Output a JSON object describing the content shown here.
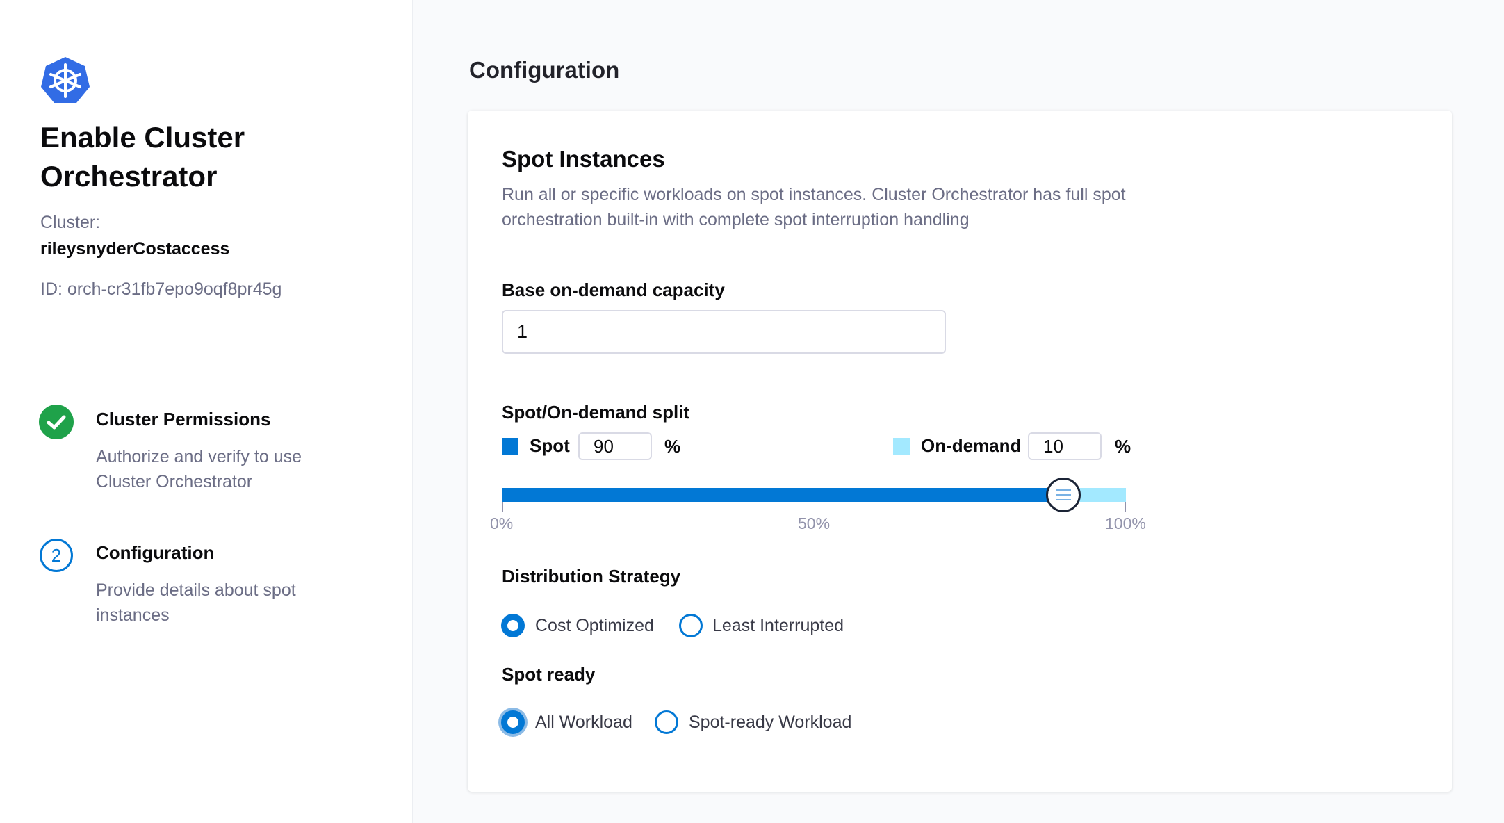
{
  "sidebar": {
    "logo_icon": "kubernetes-helm-icon",
    "title": "Enable Cluster Orchestrator",
    "cluster_label": "Cluster:",
    "cluster_name": "rileysnyderCostaccess",
    "cluster_id": "ID: orch-cr31fb7epo9oqf8pr45g",
    "steps": [
      {
        "label": "Cluster Permissions",
        "desc": "Authorize and verify to use Cluster Orchestrator",
        "status": "complete",
        "icon": "check-circle-icon"
      },
      {
        "label": "Configuration",
        "desc": "Provide details about spot instances",
        "status": "current",
        "number": "2"
      }
    ]
  },
  "main": {
    "heading": "Configuration",
    "section_title": "Spot Instances",
    "section_desc": "Run all or specific workloads on spot instances. Cluster Orchestrator has full spot orchestration built-in with complete spot interruption handling",
    "base_label": "Base on-demand capacity",
    "base_value": "1",
    "split_label": "Spot/On-demand split",
    "spot_label": "Spot",
    "spot_value": "90",
    "ondemand_label": "On-demand",
    "ondemand_value": "10",
    "percent": "%",
    "slider_value_percent": 90,
    "ticks": [
      "0%",
      "50%",
      "100%"
    ],
    "dist_label": "Distribution Strategy",
    "dist_options": [
      "Cost Optimized",
      "Least Interrupted"
    ],
    "dist_selected": "Cost Optimized",
    "ready_label": "Spot ready",
    "ready_options": [
      "All Workload",
      "Spot-ready Workload"
    ],
    "ready_selected": "All Workload"
  },
  "colors": {
    "accent": "#0278d5",
    "ondemand": "#a3e9ff",
    "success": "#1fa24a",
    "logo": "#326ce5"
  }
}
